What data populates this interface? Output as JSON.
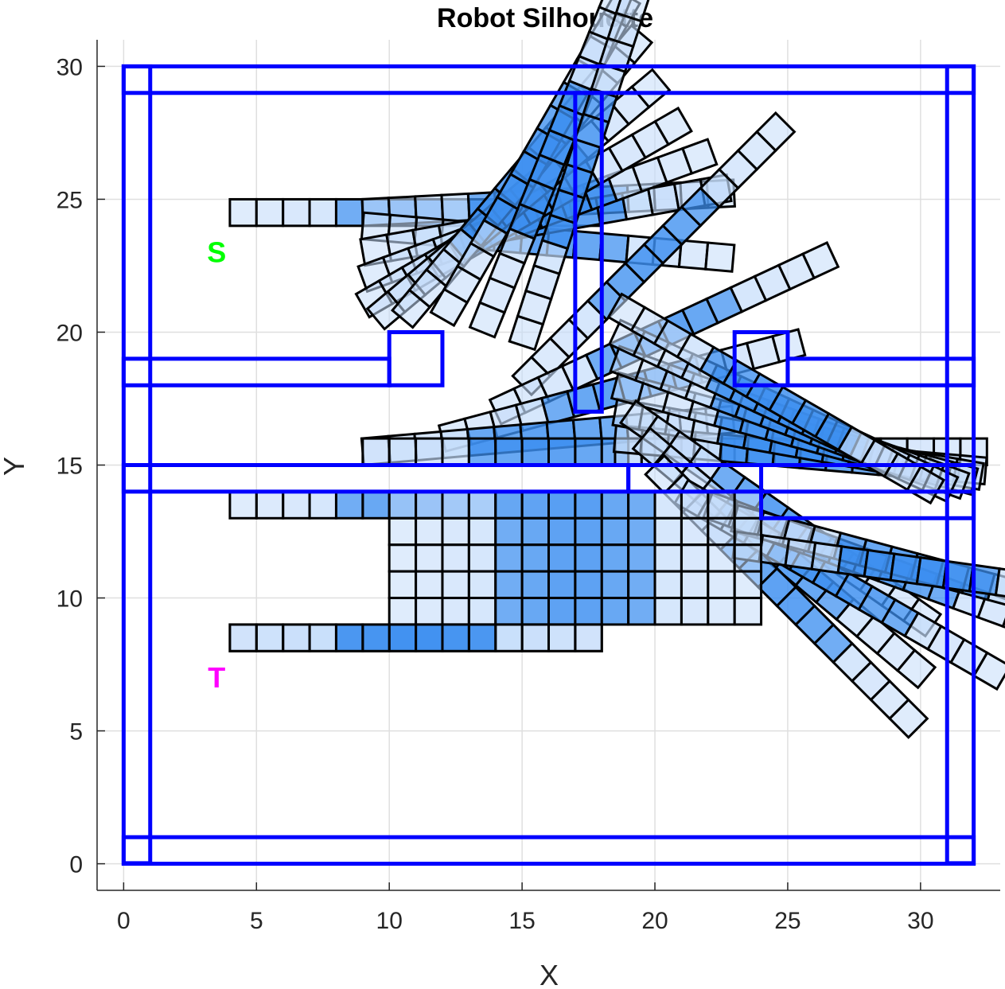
{
  "chart_data": {
    "type": "scatter",
    "title": "Robot Silhouette",
    "xlabel": "X",
    "ylabel": "Y",
    "xlim": [
      -1,
      33
    ],
    "ylim": [
      -1,
      31
    ],
    "xticks": [
      "0",
      "5",
      "10",
      "15",
      "20",
      "25",
      "30"
    ],
    "yticks": [
      "0",
      "5",
      "10",
      "15",
      "20",
      "25",
      "30"
    ],
    "grid": true,
    "colors": {
      "walls": "#0000ff",
      "robot_fill": "#3d8ff0",
      "robot_fill_light": "#c4dcfa",
      "robot_edge": "#000000",
      "start": "#00ff00",
      "target": "#ff00ff"
    },
    "labels": {
      "start": {
        "text": "S",
        "x": 3.5,
        "y": 23
      },
      "target": {
        "text": "T",
        "x": 3.5,
        "y": 7
      }
    },
    "walls": [
      {
        "x": 0,
        "y": 29,
        "w": 32,
        "h": 1
      },
      {
        "x": 0,
        "y": 0,
        "w": 32,
        "h": 1
      },
      {
        "x": 0,
        "y": 0,
        "w": 1,
        "h": 30
      },
      {
        "x": 31,
        "y": 0,
        "w": 1,
        "h": 30
      },
      {
        "x": 17,
        "y": 17,
        "w": 1,
        "h": 12
      },
      {
        "x": 0,
        "y": 18,
        "w": 10,
        "h": 1
      },
      {
        "x": 10,
        "y": 18,
        "w": 2,
        "h": 2
      },
      {
        "x": 0,
        "y": 14,
        "w": 19,
        "h": 1
      },
      {
        "x": 19,
        "y": 14,
        "w": 13,
        "h": 1
      },
      {
        "x": 23,
        "y": 18,
        "w": 2,
        "h": 2
      },
      {
        "x": 25,
        "y": 18,
        "w": 7,
        "h": 1
      },
      {
        "x": 24,
        "y": 13,
        "w": 8,
        "h": 2
      }
    ],
    "robot_path": [
      {
        "x": 4,
        "y": 24.5,
        "angle": 0
      },
      {
        "x": 9,
        "y": 24.5,
        "angle": 3
      },
      {
        "x": 9,
        "y": 24,
        "angle": -5
      },
      {
        "x": 9,
        "y": 23,
        "angle": 10
      },
      {
        "x": 9,
        "y": 22,
        "angle": 20
      },
      {
        "x": 9,
        "y": 21,
        "angle": 30
      },
      {
        "x": 9.5,
        "y": 20.5,
        "angle": 40
      },
      {
        "x": 10.5,
        "y": 20.5,
        "angle": 50
      },
      {
        "x": 12,
        "y": 20.5,
        "angle": 60
      },
      {
        "x": 13.5,
        "y": 20,
        "angle": 68
      },
      {
        "x": 15,
        "y": 19.5,
        "angle": 72
      },
      {
        "x": 15,
        "y": 18,
        "angle": 45
      },
      {
        "x": 14,
        "y": 17,
        "angle": 25
      },
      {
        "x": 12,
        "y": 16,
        "angle": 15
      },
      {
        "x": 9,
        "y": 15.5,
        "angle": 5
      },
      {
        "x": 9,
        "y": 15.5,
        "angle": 0
      },
      {
        "x": 18.5,
        "y": 15.5,
        "angle": 0
      },
      {
        "x": 18.5,
        "y": 16,
        "angle": -5
      },
      {
        "x": 18.5,
        "y": 17,
        "angle": -10
      },
      {
        "x": 18.5,
        "y": 18,
        "angle": -15
      },
      {
        "x": 18.5,
        "y": 19,
        "angle": -20
      },
      {
        "x": 18.5,
        "y": 20,
        "angle": -25
      },
      {
        "x": 18.5,
        "y": 21,
        "angle": -30
      },
      {
        "x": 19,
        "y": 17,
        "angle": -35
      },
      {
        "x": 19.5,
        "y": 16,
        "angle": -40
      },
      {
        "x": 20,
        "y": 15,
        "angle": -45
      },
      {
        "x": 21,
        "y": 14,
        "angle": -30
      },
      {
        "x": 22,
        "y": 13.5,
        "angle": -20
      },
      {
        "x": 23,
        "y": 13,
        "angle": -15
      },
      {
        "x": 23,
        "y": 12,
        "angle": -8
      },
      {
        "x": 18,
        "y": 13.5,
        "angle": 180
      },
      {
        "x": 10,
        "y": 13.5,
        "angle": 0
      },
      {
        "x": 10,
        "y": 12.5,
        "angle": 0
      },
      {
        "x": 10,
        "y": 11.5,
        "angle": 0
      },
      {
        "x": 10,
        "y": 10.5,
        "angle": 0
      },
      {
        "x": 10,
        "y": 9.5,
        "angle": 0
      },
      {
        "x": 4,
        "y": 8.5,
        "angle": 0
      },
      {
        "x": 18,
        "y": 8.5,
        "angle": 180
      }
    ]
  }
}
